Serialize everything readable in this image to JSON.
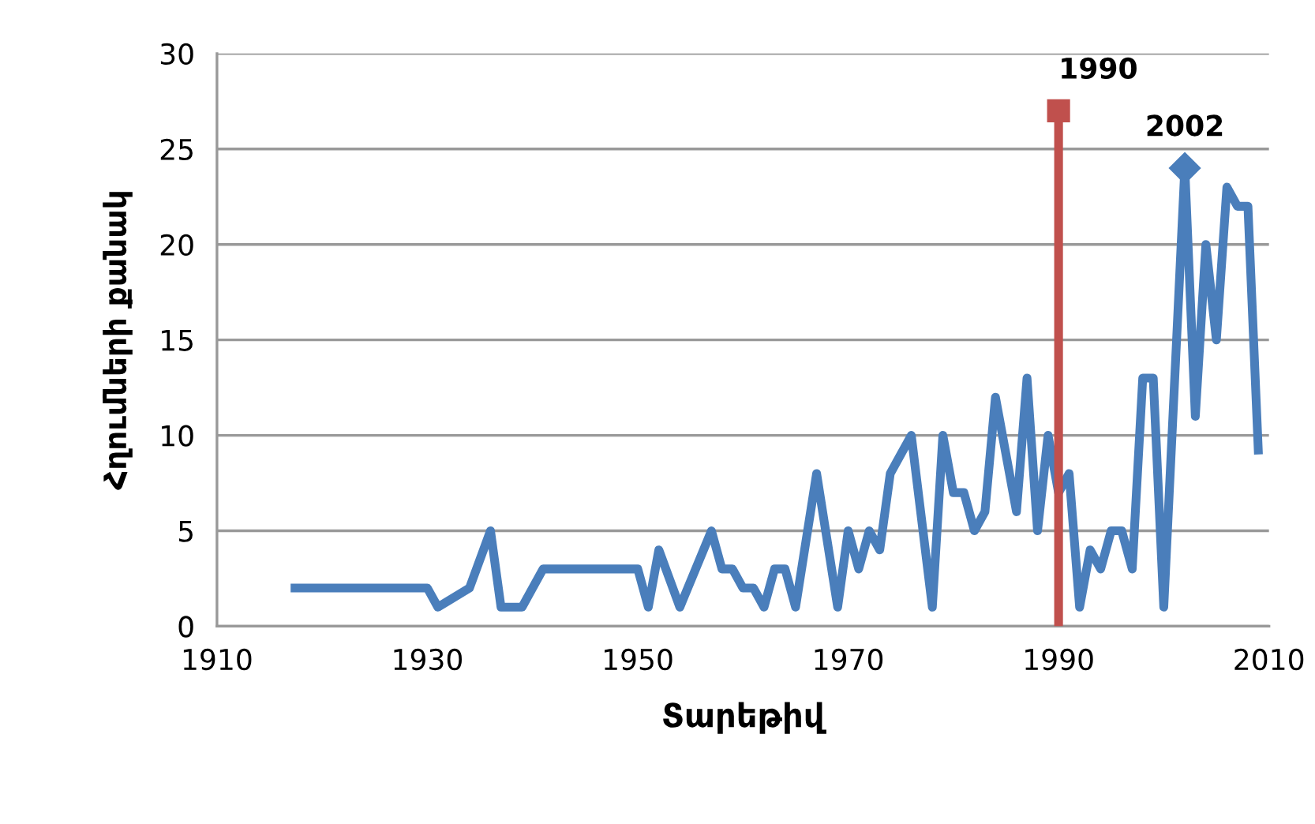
{
  "chart_data": {
    "type": "line",
    "xlabel": "Տարեթիվ",
    "ylabel": "Հղումների քանակ",
    "xlim": [
      1910,
      2010
    ],
    "xticks": [
      1910,
      1930,
      1950,
      1970,
      1990,
      2010
    ],
    "ylim": [
      0,
      30
    ],
    "yticks": [
      0,
      5,
      10,
      15,
      20,
      25,
      30
    ],
    "grid": "y",
    "marker": "none",
    "line_style": "solid",
    "series": [
      {
        "color": "#4a7ebb",
        "x": [
          1917,
          1930,
          1931,
          1934,
          1936,
          1937,
          1939,
          1941,
          1943,
          1949,
          1950,
          1951,
          1952,
          1954,
          1957,
          1958,
          1959,
          1960,
          1961,
          1962,
          1963,
          1964,
          1965,
          1967,
          1969,
          1970,
          1971,
          1972,
          1973,
          1974,
          1975,
          1976,
          1978,
          1979,
          1980,
          1981,
          1982,
          1983,
          1984,
          1986,
          1987,
          1988,
          1989,
          1990,
          1991,
          1992,
          1993,
          1994,
          1995,
          1996,
          1997,
          1998,
          1999,
          2000,
          2002,
          2003,
          2004,
          2005,
          2006,
          2007,
          2008,
          2009
        ],
        "values": [
          2,
          2,
          1,
          2,
          5,
          1,
          1,
          3,
          3,
          3,
          3,
          1,
          4,
          1,
          5,
          3,
          3,
          2,
          2,
          1,
          3,
          3,
          1,
          8,
          1,
          5,
          3,
          5,
          4,
          8,
          9,
          10,
          1,
          10,
          7,
          7,
          5,
          6,
          12,
          6,
          13,
          5,
          10,
          7,
          8,
          1,
          4,
          3,
          5,
          5,
          3,
          13,
          13,
          1,
          24,
          11,
          20,
          15,
          23,
          22,
          22,
          9
        ]
      },
      {
        "color": "#c0504d",
        "x": [
          1990,
          1990
        ],
        "values": [
          0,
          27
        ]
      },
      {
        "type": "scatter",
        "color": "#c0504d",
        "marker": "square",
        "x": [
          1990
        ],
        "values": [
          27
        ]
      },
      {
        "type": "scatter",
        "color": "#4a7ebb",
        "marker": "diamond",
        "x": [
          2002
        ],
        "values": [
          24
        ]
      }
    ],
    "annotations": [
      {
        "text": "1990",
        "x": 1990,
        "y": 27
      },
      {
        "text": "2002",
        "x": 2002,
        "y": 24
      }
    ]
  }
}
